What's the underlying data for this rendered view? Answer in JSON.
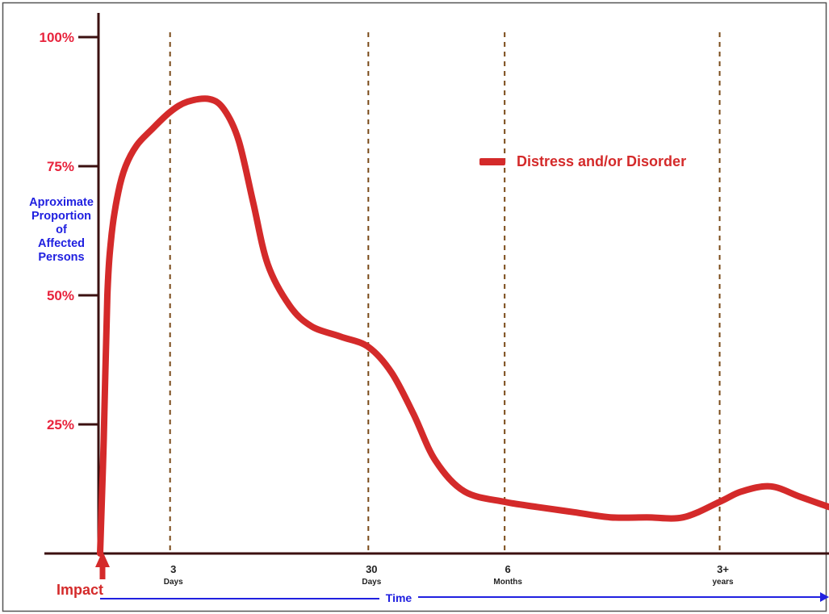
{
  "colors": {
    "series": "#d42a2a",
    "y_ticks": "#e8233c",
    "y_label": "#2020e0",
    "time_arrow": "#2020e0",
    "axis": "#3b1010",
    "guides": "#7a4a18"
  },
  "chart_data": {
    "type": "line",
    "title": "",
    "ylabel_lines": [
      "Aproximate",
      "Proportion",
      "of",
      "Affected",
      "Persons"
    ],
    "yticks": [
      {
        "value": 100,
        "label": "100%"
      },
      {
        "value": 75,
        "label": "75%"
      },
      {
        "value": 50,
        "label": "50%"
      },
      {
        "value": 25,
        "label": "25%"
      }
    ],
    "ylim": [
      0,
      100
    ],
    "xlim": [
      0,
      100
    ],
    "x_markers": [
      {
        "x": 9.6,
        "num": "3",
        "unit": "Days"
      },
      {
        "x": 36.8,
        "num": "30",
        "unit": "Days"
      },
      {
        "x": 55.5,
        "num": "6",
        "unit": "Months"
      },
      {
        "x": 85.0,
        "num": "3+",
        "unit": "years"
      }
    ],
    "impact_label": "Impact",
    "time_label": "Time",
    "legend": {
      "label": "Distress and/or Disorder",
      "position": "top-center"
    },
    "grid": false,
    "series": [
      {
        "name": "Distress and/or Disorder",
        "x": [
          0.0,
          0.5,
          1.0,
          1.6,
          2.5,
          3.5,
          5.0,
          7.0,
          9.6,
          12.0,
          15.0,
          17.0,
          19.0,
          21.0,
          23.0,
          26.0,
          29.0,
          33.0,
          36.8,
          40.0,
          43.0,
          46.0,
          50.0,
          55.5,
          60.0,
          65.0,
          70.0,
          75.0,
          80.0,
          85.0,
          88.0,
          92.0,
          96.0,
          100.0
        ],
        "values": [
          0,
          22,
          50,
          62,
          70,
          75,
          79,
          82,
          85.5,
          87.5,
          88,
          86,
          80,
          68,
          56,
          48,
          44,
          42,
          40,
          35,
          27,
          18,
          12,
          10,
          9,
          8,
          7,
          7,
          7,
          10,
          12,
          13,
          11,
          9
        ]
      }
    ]
  }
}
